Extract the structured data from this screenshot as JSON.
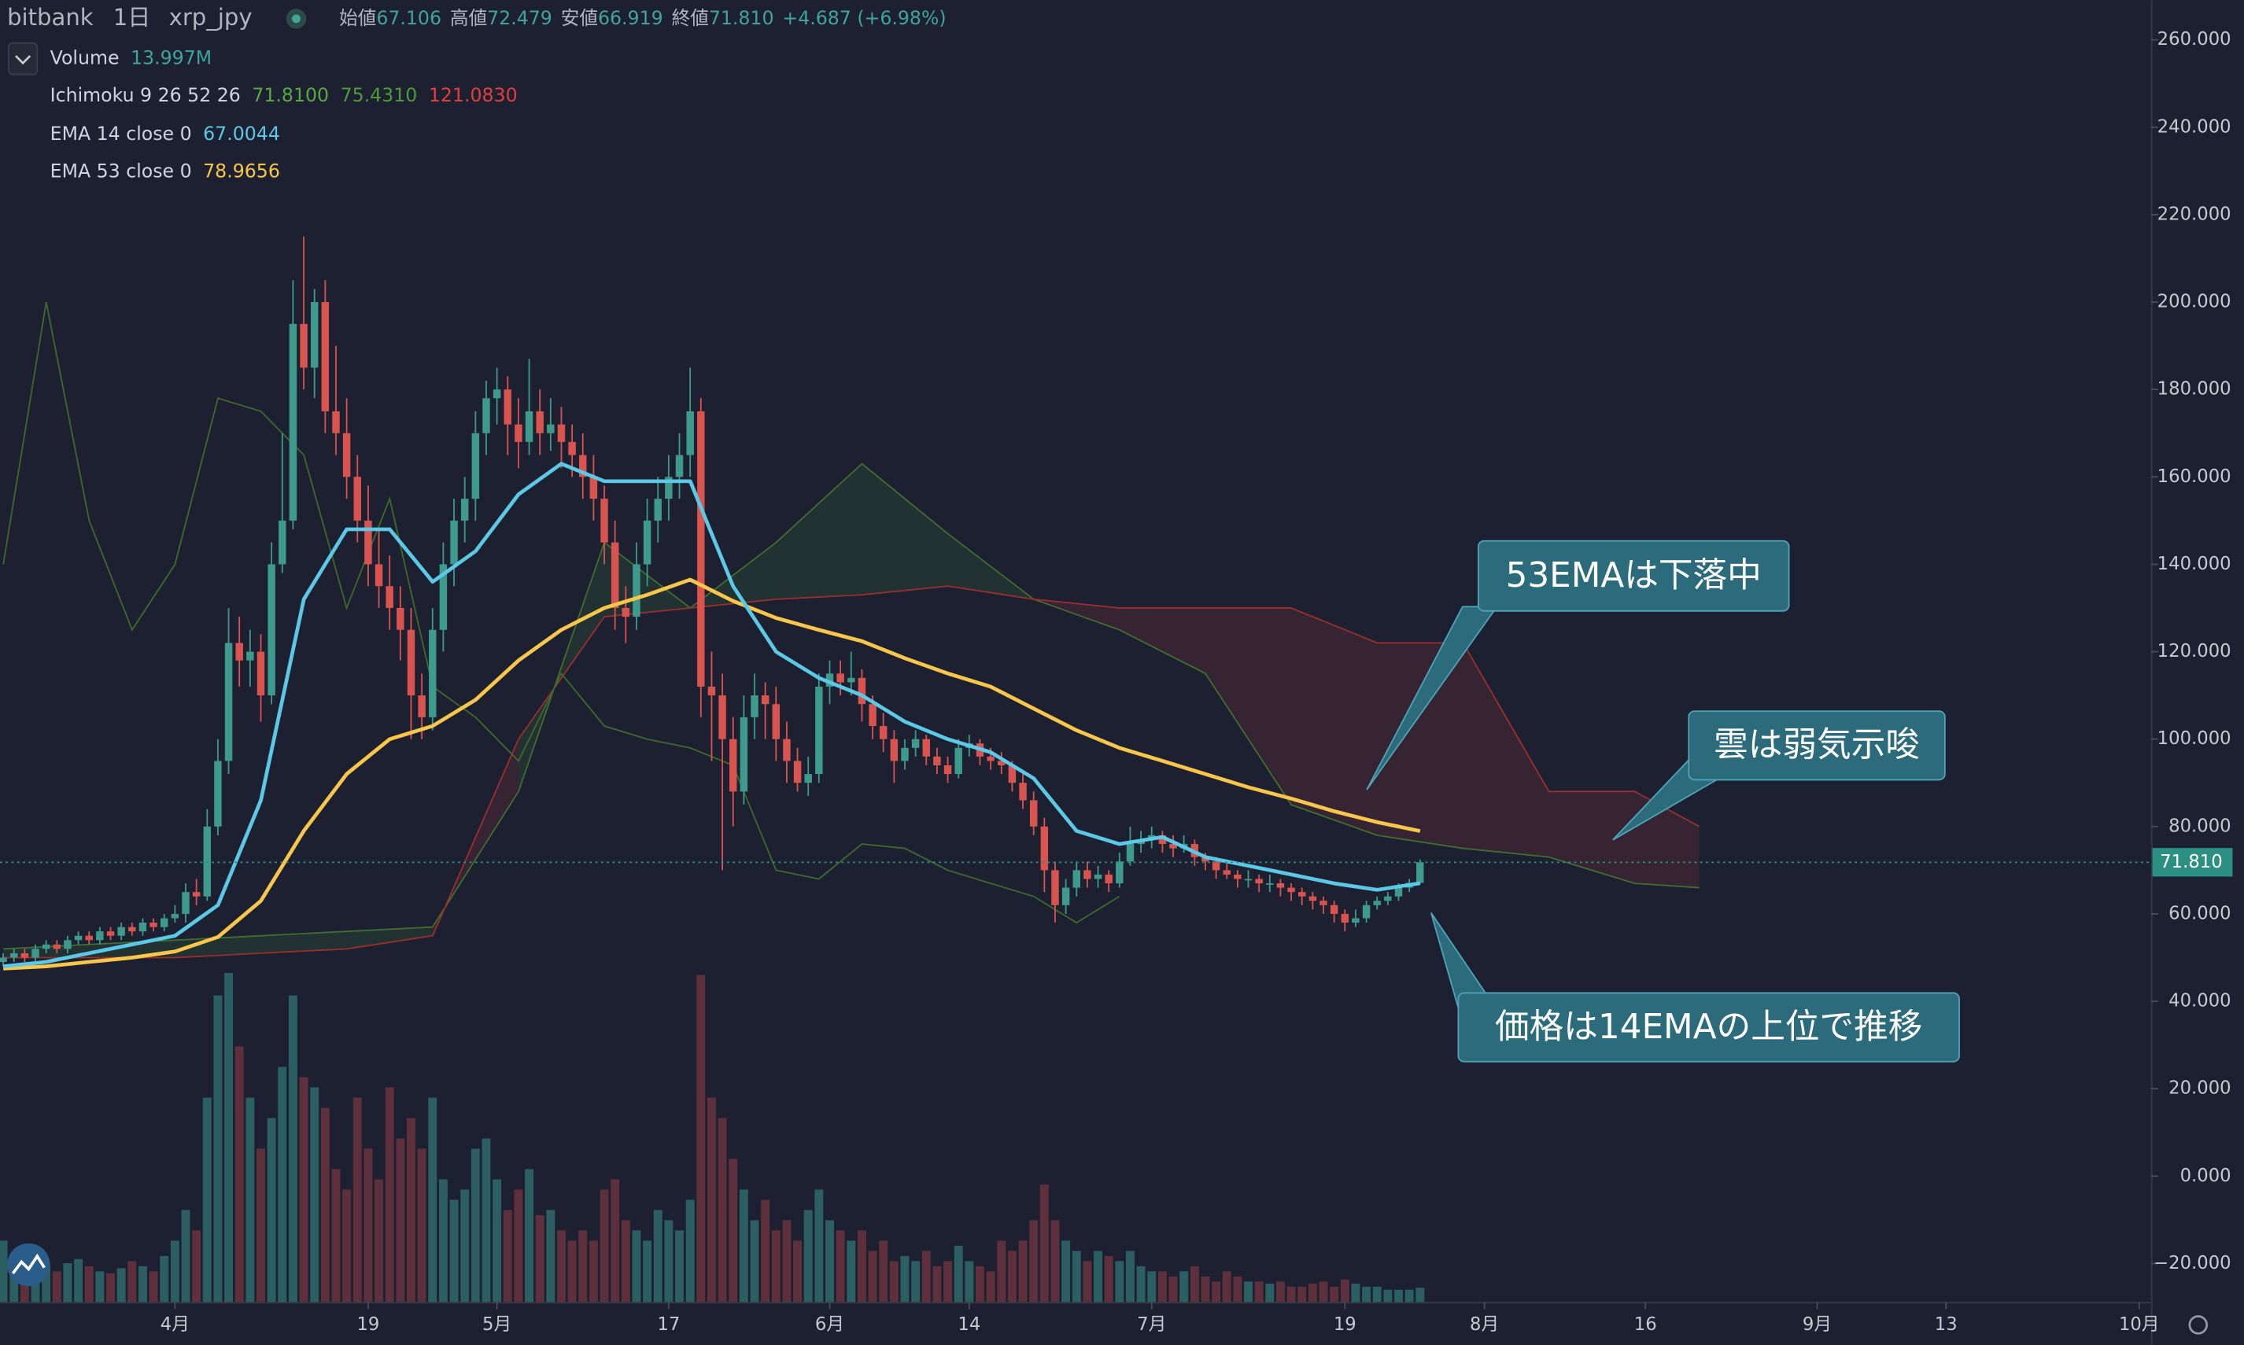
{
  "header": {
    "exchange": "bitbank",
    "interval": "1日",
    "symbol": "xrp_jpy",
    "ohlc": [
      {
        "label": "始値",
        "value": "67.106"
      },
      {
        "label": "高値",
        "value": "72.479"
      },
      {
        "label": "安値",
        "value": "66.919"
      },
      {
        "label": "終値",
        "value": "71.810"
      }
    ],
    "change": "+4.687 (+6.98%)"
  },
  "indicators": [
    {
      "name": "Volume",
      "values": [
        "13.997M"
      ],
      "colors": [
        "#3fa597"
      ]
    },
    {
      "name": "Ichimoku 9 26 52 26",
      "values": [
        "71.8100",
        "75.4310",
        "121.0830"
      ],
      "colors": [
        "#5aa843",
        "#4e9a3a",
        "#e0403a"
      ]
    },
    {
      "name": "EMA 14 close 0",
      "values": [
        "67.0044"
      ],
      "colors": [
        "#5bc8e6"
      ]
    },
    {
      "name": "EMA 53 close 0",
      "values": [
        "78.9656"
      ],
      "colors": [
        "#f7c64a"
      ]
    }
  ],
  "annotations": [
    "53EMAは下落中",
    "雲は弱気示唆",
    "価格は14EMAの上位で推移"
  ],
  "chart_data": {
    "type": "candlestick",
    "up_color": "#3d9a8d",
    "down_color": "#d9534f",
    "x": [
      -16,
      -15,
      -14,
      -13,
      -12,
      -11,
      -10,
      -9,
      -8,
      -7,
      -6,
      -5,
      -4,
      -3,
      -2,
      -1,
      0,
      1,
      2,
      3,
      4,
      5,
      6,
      7,
      8,
      9,
      10,
      11,
      12,
      13,
      14,
      15,
      16,
      17,
      18,
      19,
      20,
      21,
      22,
      23,
      24,
      25,
      26,
      27,
      28,
      29,
      30,
      31,
      32,
      33,
      34,
      35,
      36,
      37,
      38,
      39,
      40,
      41,
      42,
      43,
      44,
      45,
      46,
      47,
      48,
      49,
      50,
      51,
      52,
      53,
      54,
      55,
      56,
      57,
      58,
      59,
      60,
      61,
      62,
      63,
      64,
      65,
      66,
      67,
      68,
      69,
      70,
      71,
      72,
      73,
      74,
      75,
      76,
      77,
      78,
      79,
      80,
      81,
      82,
      83,
      84,
      85,
      86,
      87,
      88,
      89,
      90,
      91,
      92,
      93,
      94,
      95,
      96,
      97,
      98,
      99,
      100,
      101,
      102,
      103,
      104,
      105,
      106,
      107,
      108,
      109,
      110,
      111,
      112,
      113,
      114,
      115,
      116
    ],
    "ohlc": [
      [
        49,
        51,
        48,
        50
      ],
      [
        50,
        52,
        49,
        51
      ],
      [
        51,
        52,
        49,
        50
      ],
      [
        50,
        53,
        49,
        52
      ],
      [
        52,
        54,
        51,
        53
      ],
      [
        53,
        54,
        51,
        52
      ],
      [
        52,
        55,
        51,
        54
      ],
      [
        54,
        56,
        53,
        55
      ],
      [
        55,
        56,
        53,
        54
      ],
      [
        54,
        57,
        53,
        56
      ],
      [
        56,
        57,
        54,
        55
      ],
      [
        55,
        58,
        54,
        57
      ],
      [
        57,
        58,
        55,
        56
      ],
      [
        56,
        59,
        55,
        58
      ],
      [
        58,
        59,
        56,
        57
      ],
      [
        57,
        60,
        56,
        59
      ],
      [
        59,
        62,
        58,
        60
      ],
      [
        60,
        67,
        58,
        65
      ],
      [
        65,
        68,
        62,
        64
      ],
      [
        64,
        84,
        63,
        80
      ],
      [
        80,
        100,
        78,
        95
      ],
      [
        95,
        130,
        92,
        122
      ],
      [
        122,
        128,
        112,
        118
      ],
      [
        118,
        125,
        112,
        120
      ],
      [
        120,
        124,
        104,
        110
      ],
      [
        110,
        145,
        108,
        140
      ],
      [
        140,
        170,
        138,
        150
      ],
      [
        150,
        205,
        148,
        195
      ],
      [
        195,
        215,
        180,
        185
      ],
      [
        185,
        203,
        178,
        200
      ],
      [
        200,
        205,
        170,
        175
      ],
      [
        175,
        190,
        165,
        170
      ],
      [
        170,
        178,
        155,
        160
      ],
      [
        160,
        165,
        145,
        150
      ],
      [
        150,
        158,
        135,
        140
      ],
      [
        140,
        148,
        130,
        135
      ],
      [
        135,
        142,
        125,
        130
      ],
      [
        130,
        135,
        118,
        125
      ],
      [
        125,
        130,
        100,
        110
      ],
      [
        110,
        115,
        100,
        105
      ],
      [
        105,
        130,
        102,
        125
      ],
      [
        125,
        145,
        120,
        140
      ],
      [
        140,
        155,
        135,
        150
      ],
      [
        150,
        160,
        145,
        155
      ],
      [
        155,
        175,
        150,
        170
      ],
      [
        170,
        182,
        165,
        178
      ],
      [
        178,
        185,
        172,
        180
      ],
      [
        180,
        183,
        165,
        172
      ],
      [
        172,
        178,
        162,
        168
      ],
      [
        168,
        187,
        165,
        175
      ],
      [
        175,
        180,
        165,
        170
      ],
      [
        170,
        178,
        166,
        172
      ],
      [
        172,
        176,
        162,
        168
      ],
      [
        168,
        172,
        160,
        165
      ],
      [
        165,
        170,
        155,
        160
      ],
      [
        160,
        165,
        150,
        155
      ],
      [
        155,
        158,
        140,
        145
      ],
      [
        145,
        150,
        125,
        130
      ],
      [
        130,
        135,
        122,
        128
      ],
      [
        128,
        145,
        125,
        140
      ],
      [
        140,
        155,
        135,
        150
      ],
      [
        150,
        160,
        145,
        155
      ],
      [
        155,
        165,
        150,
        160
      ],
      [
        160,
        170,
        155,
        165
      ],
      [
        165,
        185,
        160,
        175
      ],
      [
        175,
        178,
        105,
        112
      ],
      [
        112,
        120,
        95,
        110
      ],
      [
        110,
        115,
        70,
        100
      ],
      [
        100,
        105,
        80,
        88
      ],
      [
        88,
        110,
        85,
        105
      ],
      [
        105,
        115,
        100,
        110
      ],
      [
        110,
        113,
        100,
        108
      ],
      [
        108,
        112,
        95,
        100
      ],
      [
        100,
        104,
        90,
        95
      ],
      [
        95,
        98,
        88,
        90
      ],
      [
        90,
        96,
        87,
        92
      ],
      [
        92,
        115,
        90,
        112
      ],
      [
        112,
        118,
        108,
        115
      ],
      [
        115,
        118,
        110,
        113
      ],
      [
        113,
        120,
        110,
        114
      ],
      [
        114,
        116,
        104,
        108
      ],
      [
        108,
        110,
        100,
        103
      ],
      [
        103,
        106,
        97,
        100
      ],
      [
        100,
        102,
        90,
        95
      ],
      [
        95,
        100,
        93,
        98
      ],
      [
        98,
        102,
        96,
        100
      ],
      [
        100,
        101,
        94,
        96
      ],
      [
        96,
        98,
        92,
        94
      ],
      [
        94,
        96,
        90,
        92
      ],
      [
        92,
        100,
        91,
        98
      ],
      [
        98,
        101,
        96,
        99
      ],
      [
        99,
        100,
        94,
        96
      ],
      [
        96,
        98,
        93,
        95
      ],
      [
        95,
        97,
        92,
        94
      ],
      [
        94,
        95,
        88,
        90
      ],
      [
        90,
        92,
        84,
        86
      ],
      [
        86,
        88,
        78,
        80
      ],
      [
        80,
        82,
        65,
        70
      ],
      [
        70,
        72,
        58,
        62
      ],
      [
        62,
        68,
        60,
        66
      ],
      [
        66,
        72,
        64,
        70
      ],
      [
        70,
        72,
        66,
        68
      ],
      [
        68,
        71,
        66,
        69
      ],
      [
        69,
        70,
        65,
        67
      ],
      [
        67,
        74,
        66,
        72
      ],
      [
        72,
        80,
        71,
        76
      ],
      [
        76,
        79,
        74,
        77
      ],
      [
        77,
        80,
        75,
        78
      ],
      [
        78,
        79,
        74,
        76
      ],
      [
        76,
        78,
        73,
        75
      ],
      [
        75,
        78,
        74,
        76
      ],
      [
        76,
        77,
        71,
        73
      ],
      [
        73,
        74,
        70,
        72
      ],
      [
        72,
        73,
        68,
        70
      ],
      [
        70,
        72,
        68,
        69
      ],
      [
        69,
        70,
        66,
        68
      ],
      [
        68,
        70,
        66,
        68
      ],
      [
        68,
        69,
        65,
        67
      ],
      [
        67,
        69,
        65,
        67
      ],
      [
        67,
        68,
        64,
        66
      ],
      [
        66,
        67,
        63,
        65
      ],
      [
        65,
        66,
        62,
        64
      ],
      [
        64,
        65,
        61,
        63
      ],
      [
        63,
        64,
        60,
        62
      ],
      [
        62,
        63,
        58,
        60
      ],
      [
        60,
        61,
        56,
        58
      ],
      [
        58,
        61,
        57,
        59
      ],
      [
        59,
        63,
        58,
        62
      ],
      [
        62,
        64,
        61,
        63
      ],
      [
        63,
        65,
        62,
        64
      ],
      [
        64,
        67,
        63,
        66
      ],
      [
        66,
        68,
        65,
        67.1
      ],
      [
        67.106,
        72.479,
        66.919,
        71.81
      ]
    ],
    "volume": {
      "up_color": "#2f6f6e",
      "down_color": "#6e3540",
      "values": [
        60,
        45,
        50,
        40,
        35,
        30,
        38,
        42,
        35,
        30,
        28,
        33,
        40,
        35,
        30,
        45,
        60,
        90,
        70,
        200,
        300,
        322,
        250,
        200,
        150,
        180,
        230,
        300,
        220,
        210,
        190,
        130,
        110,
        200,
        150,
        120,
        210,
        160,
        180,
        150,
        200,
        120,
        100,
        110,
        150,
        160,
        120,
        90,
        110,
        130,
        85,
        90,
        70,
        60,
        70,
        60,
        110,
        120,
        80,
        70,
        60,
        90,
        80,
        70,
        100,
        320,
        200,
        180,
        140,
        110,
        80,
        100,
        70,
        80,
        60,
        90,
        110,
        80,
        70,
        60,
        70,
        50,
        60,
        40,
        45,
        40,
        50,
        35,
        40,
        55,
        40,
        35,
        30,
        60,
        50,
        60,
        80,
        115,
        80,
        60,
        50,
        40,
        50,
        45,
        40,
        50,
        35,
        30,
        30,
        25,
        30,
        35,
        25,
        20,
        30,
        25,
        20,
        20,
        18,
        20,
        15,
        15,
        18,
        20,
        15,
        22,
        18,
        15,
        15,
        12,
        12,
        12,
        13.997
      ]
    },
    "cloud": {
      "x": [
        -16,
        -8,
        0,
        8,
        16,
        24,
        32,
        40,
        48,
        56,
        64,
        72,
        80,
        88,
        96,
        104,
        112,
        120,
        128,
        136,
        142
      ],
      "lead1": [
        52,
        53,
        54,
        55,
        56,
        57,
        88,
        145,
        130,
        145,
        163,
        147,
        132,
        125,
        115,
        85,
        78,
        75,
        73,
        67,
        66
      ],
      "lead2": [
        50,
        50,
        50,
        51,
        52,
        55,
        100,
        128,
        130,
        132,
        133,
        135,
        132,
        130,
        130,
        130,
        122,
        122,
        88,
        88,
        80
      ],
      "lead1_color": "#3f6e2f",
      "lead2_color": "#9a2f2c",
      "bull_fill": "rgba(67,140,60,0.16)",
      "bear_fill": "rgba(190,60,60,0.16)"
    },
    "lines": [
      {
        "color": "#3d6a2c",
        "x": [
          -16,
          -12,
          -8,
          -4,
          0,
          4,
          8,
          12,
          16,
          20,
          24,
          28,
          32,
          36,
          40,
          44,
          48,
          52,
          56,
          60,
          64,
          68,
          72,
          76,
          80,
          84,
          88
        ],
        "values": [
          140,
          200,
          150,
          125,
          140,
          178,
          175,
          165,
          130,
          155,
          112,
          105,
          95,
          115,
          103,
          100,
          98,
          94,
          70,
          68,
          76,
          75,
          70,
          67,
          64,
          58,
          64
        ]
      },
      {
        "color": "#f7c64a",
        "x": [
          -16,
          -12,
          -8,
          -4,
          0,
          4,
          8,
          12,
          16,
          20,
          24,
          28,
          32,
          36,
          40,
          44,
          48,
          52,
          56,
          60,
          64,
          68,
          72,
          76,
          80,
          84,
          88,
          92,
          96,
          100,
          104,
          108,
          112,
          116
        ],
        "values": [
          47.5,
          48,
          49,
          50,
          51.4,
          54.7,
          63,
          79,
          92,
          100,
          103,
          109,
          118,
          125,
          130,
          133,
          136.5,
          131.6,
          127.7,
          125,
          122.4,
          118.5,
          115,
          112,
          107,
          102,
          98,
          95,
          92,
          89,
          86.4,
          83.5,
          81,
          78.9656
        ]
      },
      {
        "color": "#5bc8e6",
        "x": [
          -16,
          -12,
          -8,
          -4,
          0,
          4,
          8,
          12,
          16,
          20,
          24,
          28,
          32,
          36,
          40,
          44,
          48,
          52,
          56,
          60,
          64,
          68,
          72,
          76,
          80,
          84,
          88,
          92,
          96,
          100,
          104,
          108,
          112,
          116
        ],
        "values": [
          48,
          49,
          51,
          53,
          55,
          62,
          86,
          132,
          148,
          148,
          136,
          143,
          156,
          163,
          159,
          159,
          159,
          135,
          120,
          114,
          110,
          104,
          100,
          97,
          91,
          79,
          76,
          77.6,
          73,
          71,
          69,
          67,
          65.5,
          67.0044
        ]
      }
    ],
    "last_price": {
      "value": 71.81,
      "label": "71.810",
      "color": "#2b8f82"
    },
    "ylim": [
      -28.8,
      269.1
    ],
    "yticks": [
      {
        "value": 260,
        "label": "260.000"
      },
      {
        "value": 240,
        "label": "240.000"
      },
      {
        "value": 220,
        "label": "220.000"
      },
      {
        "value": 200,
        "label": "200.000"
      },
      {
        "value": 180,
        "label": "180.000"
      },
      {
        "value": 160,
        "label": "160.000"
      },
      {
        "value": 140,
        "label": "140.000"
      },
      {
        "value": 120,
        "label": "120.000"
      },
      {
        "value": 100,
        "label": "100.000"
      },
      {
        "value": 80,
        "label": "80.000"
      },
      {
        "value": 60,
        "label": "60.000"
      },
      {
        "value": 40,
        "label": "40.000"
      },
      {
        "value": 20,
        "label": "20.000"
      },
      {
        "value": 0,
        "label": "0.000"
      },
      {
        "value": -20,
        "label": "−20.000"
      }
    ],
    "xlim": [
      -16.3,
      184.1
    ],
    "xticks": [
      {
        "value": 0,
        "label": "4月"
      },
      {
        "value": 18,
        "label": "19"
      },
      {
        "value": 30,
        "label": "5月"
      },
      {
        "value": 46,
        "label": "17"
      },
      {
        "value": 61,
        "label": "6月"
      },
      {
        "value": 74,
        "label": "14"
      },
      {
        "value": 91,
        "label": "7月"
      },
      {
        "value": 109,
        "label": "19"
      },
      {
        "value": 122,
        "label": "8月"
      },
      {
        "value": 137,
        "label": "16"
      },
      {
        "value": 153,
        "label": "9月"
      },
      {
        "value": 165,
        "label": "13"
      },
      {
        "value": 183,
        "label": "10月"
      }
    ]
  }
}
